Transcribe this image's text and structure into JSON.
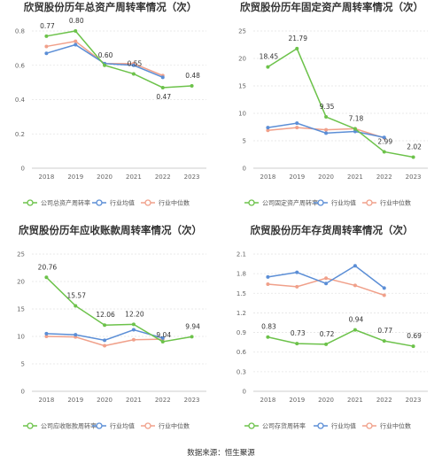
{
  "colors": {
    "company": "#6cc24a",
    "industry_avg": "#5b8ed6",
    "industry_median": "#f0a08a"
  },
  "legend": {
    "company": "",
    "industry_avg": "行业均值",
    "industry_median": "行业中位数"
  },
  "source_text": "数据来源：恒生聚源",
  "chart_data": [
    {
      "type": "line",
      "title": "欣贸股份历年总资产周转率情况（次）",
      "categories": [
        "2018",
        "2019",
        "2020",
        "2021",
        "2022",
        "2023"
      ],
      "ylim": [
        0,
        0.8
      ],
      "yticks": [
        "0",
        "0.2",
        "0.4",
        "0.6",
        "0.8"
      ],
      "grid": true,
      "legend_position": "bottom",
      "series": [
        {
          "name": "公司总资产周转率",
          "key": "company",
          "values": [
            0.77,
            0.8,
            0.6,
            0.55,
            0.47,
            0.48
          ],
          "labels": [
            "0.77",
            "0.80",
            "0.60",
            "0.55",
            "0.47",
            "0.48"
          ]
        },
        {
          "name": "行业均值",
          "key": "industry_avg",
          "values": [
            0.67,
            0.72,
            0.61,
            0.6,
            0.53,
            null
          ]
        },
        {
          "name": "行业中位数",
          "key": "industry_median",
          "values": [
            0.71,
            0.74,
            0.61,
            0.61,
            0.54,
            null
          ]
        }
      ]
    },
    {
      "type": "line",
      "title": "欣贸股份历年固定资产周转率情况（次）",
      "categories": [
        "2018",
        "2019",
        "2020",
        "2021",
        "2022",
        "2023"
      ],
      "ylim": [
        0,
        25
      ],
      "yticks": [
        "0",
        "5",
        "10",
        "15",
        "20",
        "25"
      ],
      "grid": true,
      "legend_position": "bottom",
      "series": [
        {
          "name": "公司固定资产周转率",
          "key": "company",
          "values": [
            18.45,
            21.79,
            9.35,
            7.18,
            2.99,
            2.02
          ],
          "labels": [
            "18.45",
            "21.79",
            "9.35",
            "7.18",
            "2.99",
            "2.02"
          ]
        },
        {
          "name": "行业均值",
          "key": "industry_avg",
          "values": [
            7.4,
            8.2,
            6.4,
            6.7,
            5.6,
            null
          ]
        },
        {
          "name": "行业中位数",
          "key": "industry_median",
          "values": [
            6.9,
            7.4,
            7.0,
            7.2,
            5.5,
            null
          ]
        }
      ]
    },
    {
      "type": "line",
      "title": "欣贸股份历年应收账款周转率情况（次）",
      "categories": [
        "2018",
        "2019",
        "2020",
        "2021",
        "2022",
        "2023"
      ],
      "ylim": [
        0,
        25
      ],
      "yticks": [
        "0",
        "5",
        "10",
        "15",
        "20",
        "25"
      ],
      "grid": true,
      "legend_position": "bottom",
      "series": [
        {
          "name": "公司应收账款周转率",
          "key": "company",
          "values": [
            20.76,
            15.57,
            12.06,
            12.2,
            9.04,
            9.94
          ],
          "labels": [
            "20.76",
            "15.57",
            "12.06",
            "12.20",
            "9.04",
            "9.94"
          ]
        },
        {
          "name": "行业均值",
          "key": "industry_avg",
          "values": [
            10.5,
            10.3,
            9.3,
            11.2,
            9.7,
            null
          ]
        },
        {
          "name": "行业中位数",
          "key": "industry_median",
          "values": [
            10.0,
            9.9,
            8.3,
            9.4,
            9.5,
            null
          ]
        }
      ]
    },
    {
      "type": "line",
      "title": "欣贸股份历年存货周转率情况（次）",
      "categories": [
        "2018",
        "2019",
        "2020",
        "2021",
        "2022",
        "2023"
      ],
      "ylim": [
        0,
        2.1
      ],
      "yticks": [
        "0",
        "0.3",
        "0.6",
        "0.9",
        "1.2",
        "1.5",
        "1.8",
        "2.1"
      ],
      "grid": true,
      "legend_position": "bottom",
      "series": [
        {
          "name": "公司存货周转率",
          "key": "company",
          "values": [
            0.83,
            0.73,
            0.72,
            0.94,
            0.77,
            0.69
          ],
          "labels": [
            "0.83",
            "0.73",
            "0.72",
            "0.94",
            "0.77",
            "0.69"
          ]
        },
        {
          "name": "行业均值",
          "key": "industry_avg",
          "values": [
            1.75,
            1.82,
            1.65,
            1.92,
            1.58,
            null
          ]
        },
        {
          "name": "行业中位数",
          "key": "industry_median",
          "values": [
            1.64,
            1.6,
            1.73,
            1.62,
            1.47,
            null
          ]
        }
      ]
    }
  ]
}
